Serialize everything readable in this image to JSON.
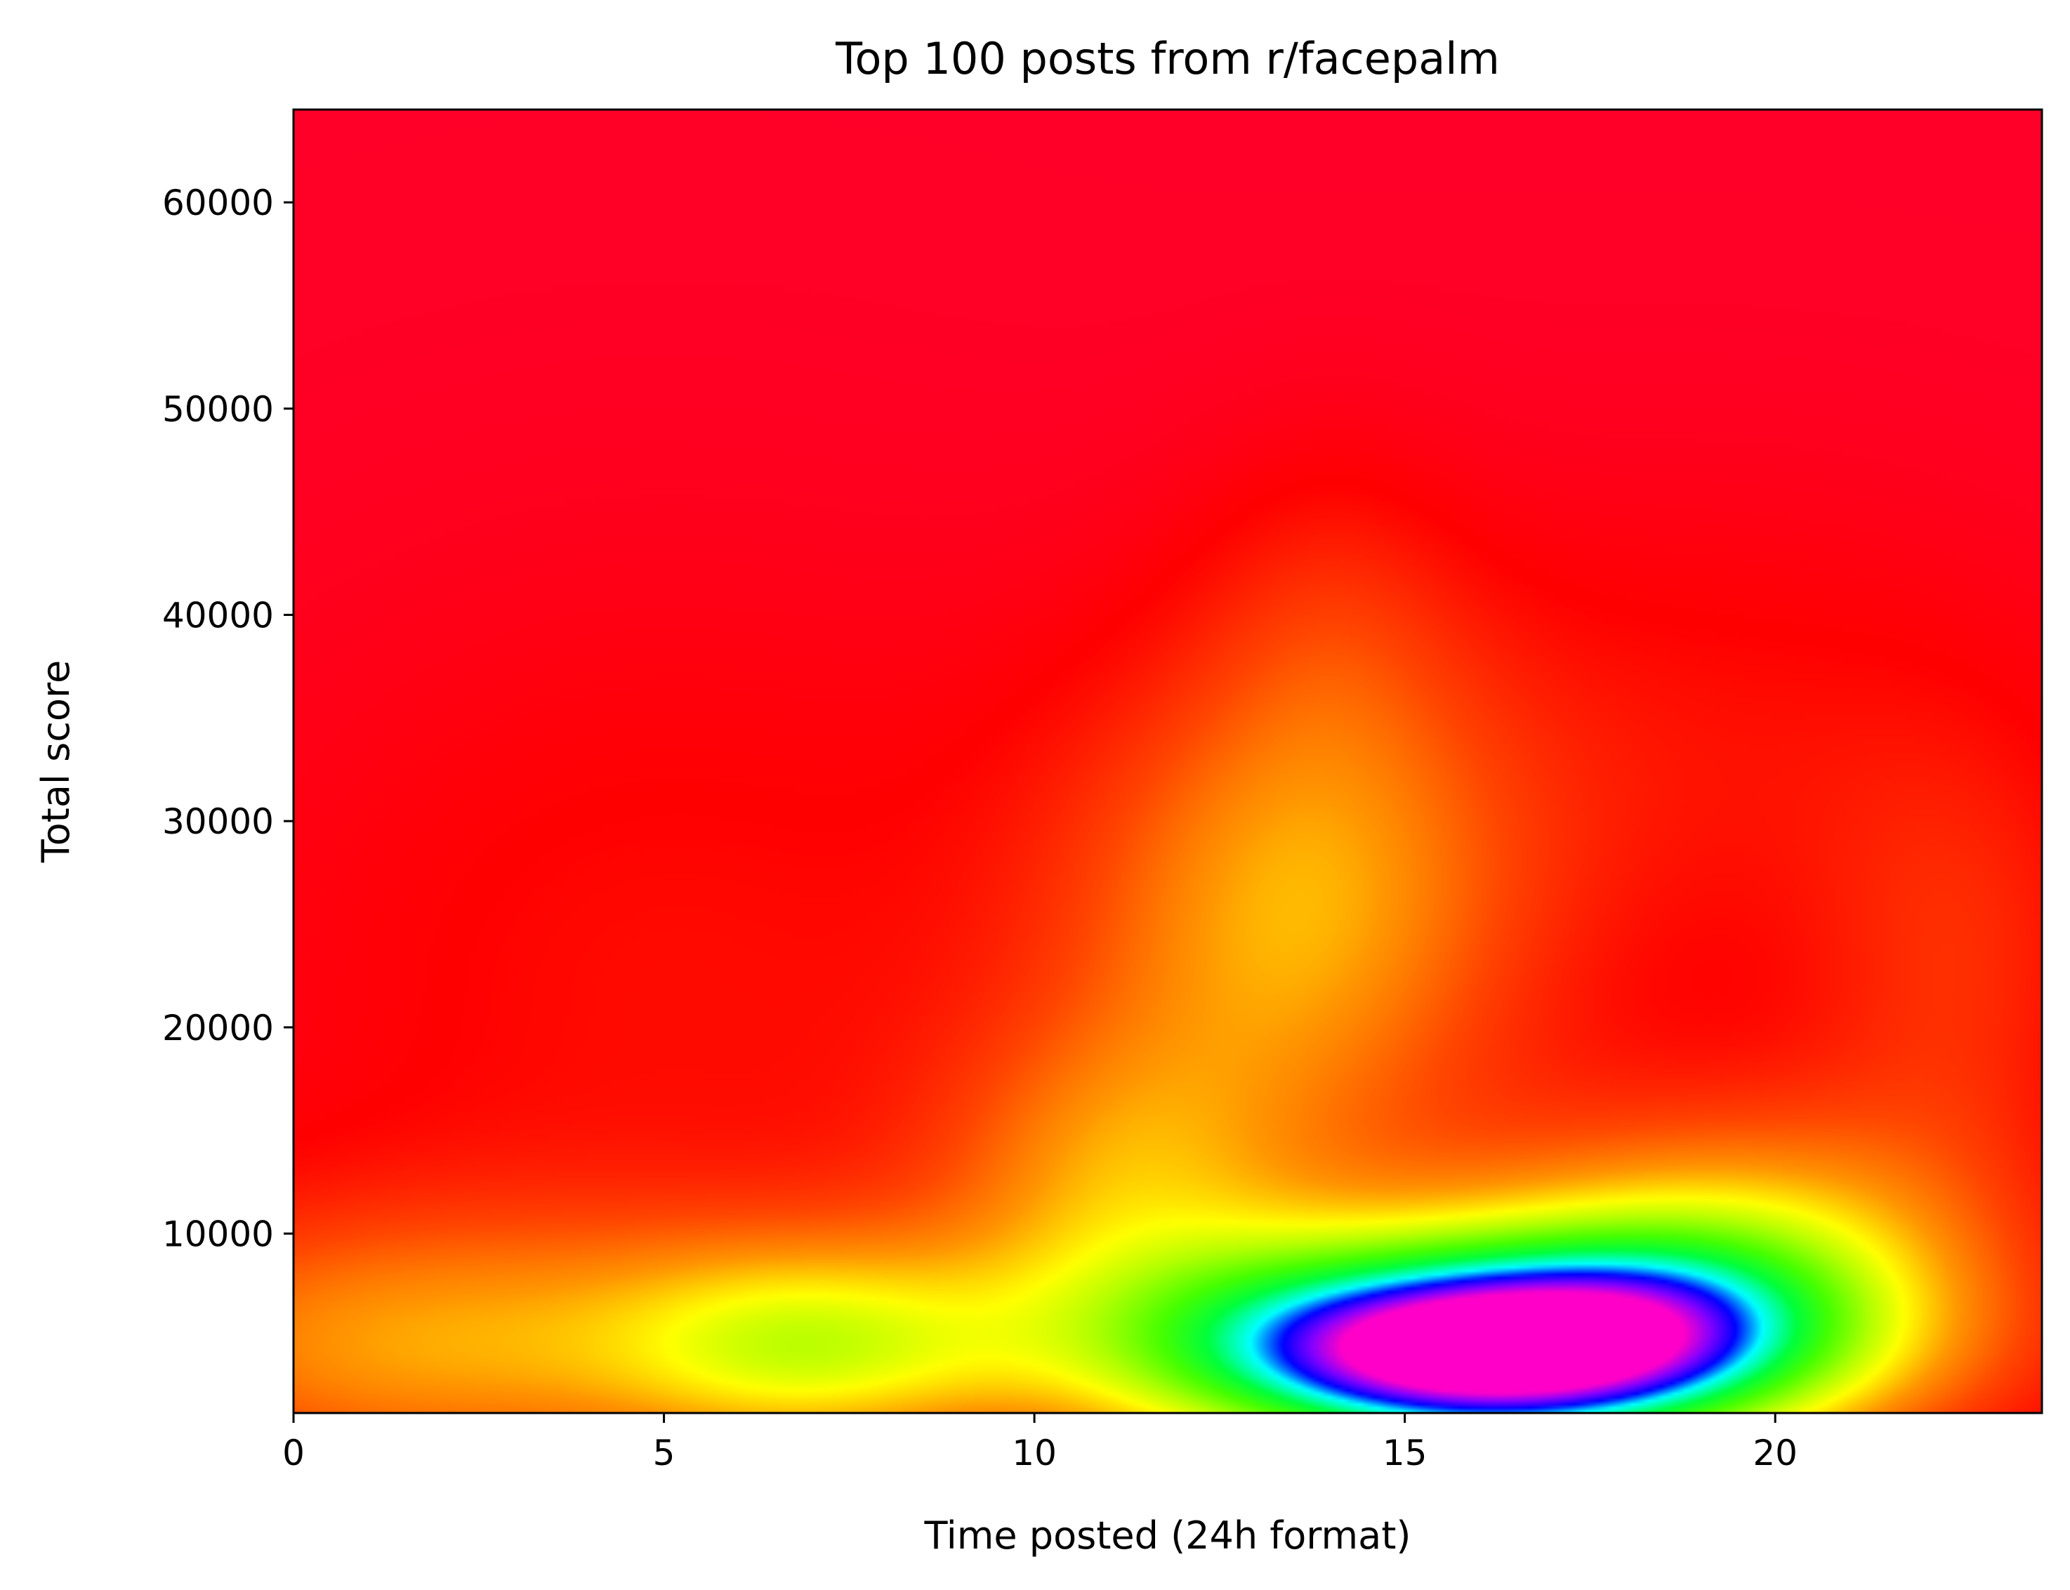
{
  "chart_data": {
    "type": "heatmap",
    "title": "Top 100 posts from r/facepalm",
    "xlabel": "Time posted (24h format)",
    "ylabel": "Total score",
    "xlim": [
      0,
      23.6
    ],
    "ylim": [
      1300,
      64500
    ],
    "x_ticks": [
      0,
      5,
      10,
      15,
      20
    ],
    "y_ticks": [
      10000,
      20000,
      30000,
      40000,
      50000,
      60000
    ],
    "x_tick_labels": [
      "0",
      "5",
      "10",
      "15",
      "20"
    ],
    "y_tick_labels": [
      "10000",
      "20000",
      "30000",
      "40000",
      "50000",
      "60000"
    ],
    "colormap": "gist_rainbow (reversed): low density red, high density magenta",
    "colorbar": false,
    "grid": false,
    "density_peaks": [
      {
        "x": 16.0,
        "y": 4200,
        "sx": 3.8,
        "sy": 4200,
        "w": 1.05
      },
      {
        "x": 13.5,
        "y": 25000,
        "sx": 2.3,
        "sy": 9000,
        "w": 0.36
      },
      {
        "x": 19.5,
        "y": 10000,
        "sx": 2.6,
        "sy": 5000,
        "w": 0.35
      },
      {
        "x": 11.0,
        "y": 13000,
        "sx": 1.8,
        "sy": 5000,
        "w": 0.25
      },
      {
        "x": 14.0,
        "y": 40000,
        "sx": 1.3,
        "sy": 6000,
        "w": 0.1
      },
      {
        "x": 1.5,
        "y": 4500,
        "sx": 3.5,
        "sy": 5000,
        "w": 0.35
      },
      {
        "x": 7.0,
        "y": 4500,
        "sx": 2.0,
        "sy": 4000,
        "w": 0.35
      },
      {
        "x": 5.0,
        "y": 22000,
        "sx": 4.5,
        "sy": 14000,
        "w": 0.12
      },
      {
        "x": 22.5,
        "y": 22000,
        "sx": 1.5,
        "sy": 8000,
        "w": 0.15
      },
      {
        "x": 19.0,
        "y": 33000,
        "sx": 4.0,
        "sy": 9000,
        "w": 0.12
      }
    ]
  }
}
